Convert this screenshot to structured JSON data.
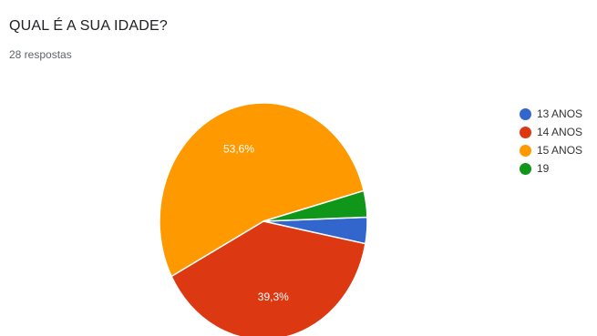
{
  "question": {
    "title": "QUAL É A SUA IDADE?",
    "responses": "28 respostas"
  },
  "chart_data": {
    "type": "pie",
    "title": "QUAL É A SUA IDADE?",
    "subtitle": "28 respostas",
    "categories": [
      "13 ANOS",
      "14 ANOS",
      "15 ANOS",
      "19"
    ],
    "values": [
      3.6,
      39.3,
      53.6,
      3.6
    ],
    "counts": [
      1,
      11,
      15,
      1
    ],
    "data_labels": [
      "",
      "39,3%",
      "53,6%",
      ""
    ],
    "colors": [
      "#3366cc",
      "#dc3912",
      "#ff9900",
      "#109618"
    ],
    "legend_position": "right"
  }
}
